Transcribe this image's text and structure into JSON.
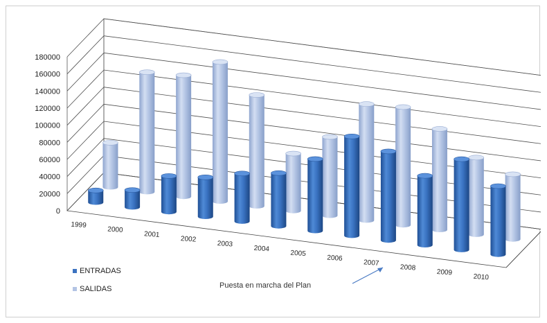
{
  "chart_data": {
    "type": "bar",
    "categories": [
      "1999",
      "2000",
      "2001",
      "2002",
      "2003",
      "2004",
      "2005",
      "2006",
      "2007",
      "2008",
      "2009",
      "2010"
    ],
    "series": [
      {
        "name": "ENTRADAS",
        "values": [
          14000,
          20000,
          42000,
          46000,
          56000,
          62000,
          84000,
          116000,
          104000,
          81000,
          106000,
          80000
        ]
      },
      {
        "name": "SALIDAS",
        "values": [
          52000,
          140000,
          142000,
          163000,
          130000,
          67000,
          92000,
          136000,
          138000,
          118000,
          90000,
          76000
        ]
      }
    ],
    "ylim": [
      0,
      180000
    ],
    "yticks": [
      "0",
      "20000",
      "40000",
      "60000",
      "80000",
      "100000",
      "120000",
      "140000",
      "160000",
      "180000"
    ],
    "legend_position": "bottom-left",
    "colors": {
      "ENTRADAS": "#3b72c0",
      "SALIDAS": "#b3c4e4"
    },
    "annotation": "Puesta en marcha del Plan"
  }
}
